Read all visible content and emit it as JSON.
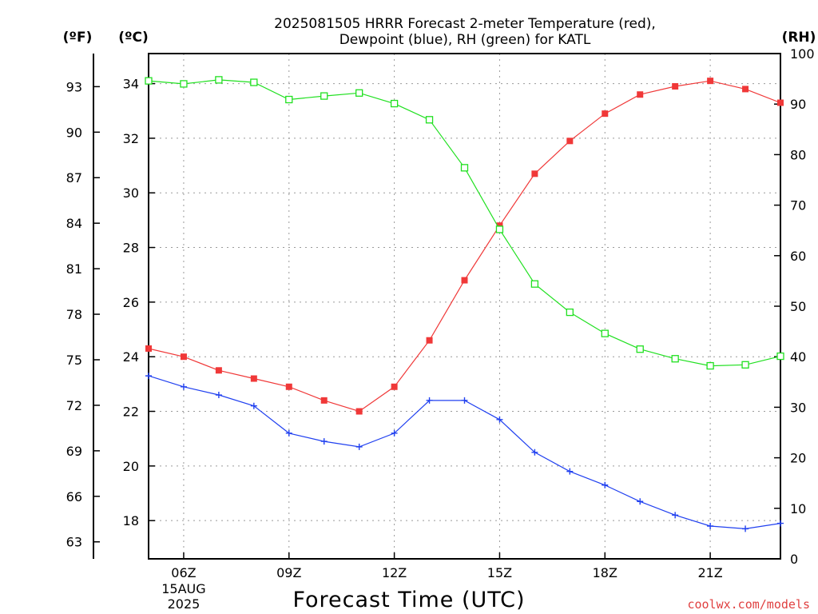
{
  "chart_data": {
    "type": "line",
    "title_lines": [
      "2025081505 HRRR Forecast 2-meter Temperature (red),",
      "Dewpoint (blue), RH (green) for KATL"
    ],
    "units": {
      "f": "(ºF)",
      "c": "(ºC)",
      "rh": "(RH)"
    },
    "xlabel": "Forecast Time (UTC)",
    "credit": "coolwx.com/models",
    "x_hours": [
      5,
      6,
      7,
      8,
      9,
      10,
      11,
      12,
      13,
      14,
      15,
      16,
      17,
      18,
      19,
      20,
      21,
      22,
      23
    ],
    "xlim": [
      5,
      23
    ],
    "x_ticks": [
      {
        "hour": 6,
        "label": "06Z",
        "sub1": "15AUG",
        "sub2": "2025"
      },
      {
        "hour": 9,
        "label": "09Z"
      },
      {
        "hour": 12,
        "label": "12Z"
      },
      {
        "hour": 15,
        "label": "15Z"
      },
      {
        "hour": 18,
        "label": "18Z"
      },
      {
        "hour": 21,
        "label": "21Z"
      }
    ],
    "y_celsius": {
      "lim": [
        16.6,
        35.1
      ],
      "ticks": [
        "18",
        "20",
        "22",
        "24",
        "26",
        "28",
        "30",
        "32",
        "34"
      ]
    },
    "y_fahrenheit": {
      "ticks": [
        "63",
        "66",
        "69",
        "72",
        "75",
        "78",
        "81",
        "84",
        "87",
        "90",
        "93"
      ]
    },
    "y_rh": {
      "lim": [
        0,
        100
      ],
      "ticks": [
        "0",
        "10",
        "20",
        "30",
        "40",
        "50",
        "60",
        "70",
        "80",
        "90",
        "100"
      ]
    },
    "grid": true,
    "series": [
      {
        "name": "Temperature",
        "axis": "celsius",
        "color": "#f03838",
        "marker": "filled-square",
        "values": [
          24.3,
          24.0,
          23.5,
          23.2,
          22.9,
          22.4,
          22.0,
          22.9,
          24.6,
          26.8,
          28.8,
          30.7,
          31.9,
          32.9,
          33.6,
          33.9,
          34.1,
          33.8,
          33.3
        ]
      },
      {
        "name": "Dewpoint",
        "axis": "celsius",
        "color": "#2040f0",
        "marker": "plus",
        "values": [
          23.3,
          22.9,
          22.6,
          22.2,
          21.2,
          20.9,
          20.7,
          21.2,
          22.4,
          22.4,
          21.7,
          20.5,
          19.8,
          19.3,
          18.7,
          18.2,
          17.8,
          17.7,
          17.9
        ]
      },
      {
        "name": "RH",
        "axis": "rh",
        "color": "#20e020",
        "marker": "open-square",
        "values": [
          94.6,
          94.0,
          94.8,
          94.3,
          90.9,
          91.6,
          92.2,
          90.1,
          86.9,
          77.4,
          65.2,
          54.4,
          48.8,
          44.6,
          41.5,
          39.6,
          38.2,
          38.4,
          40.1
        ]
      }
    ]
  }
}
